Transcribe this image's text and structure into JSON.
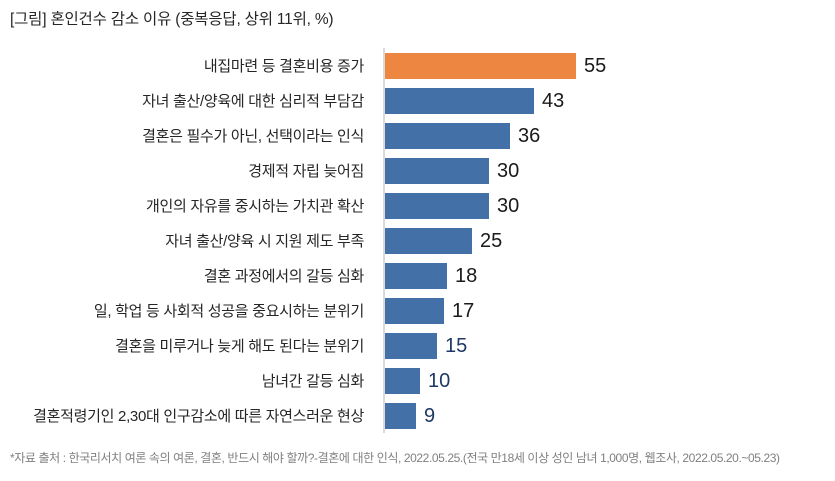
{
  "title": "[그림] 혼인건수 감소 이유 (중복응답, 상위 11위, %)",
  "footer": "*자료 출처 : 한국리서치 여론 속의 여론, 결혼, 반드시 해야 할까?-결혼에 대한 인식, 2022.05.25.(전국 만18세 이상 성인 남녀 1,000명, 웹조사, 2022.05.20.~05.23)",
  "chart_data": {
    "type": "bar",
    "orientation": "horizontal",
    "title": "[그림] 혼인건수 감소 이유 (중복응답, 상위 11위, %)",
    "categories": [
      "내집마련 등 결혼비용 증가",
      "자녀 출산/양육에 대한 심리적 부담감",
      "결혼은 필수가 아닌, 선택이라는 인식",
      "경제적 자립 늦어짐",
      "개인의 자유를 중시하는 가치관 확산",
      "자녀 출산/양육 시 지원 제도 부족",
      "결혼 과정에서의 갈등 심화",
      "일, 학업 등 사회적 성공을 중요시하는 분위기",
      "결혼을 미루거나 늦게 해도 된다는 분위기",
      "남녀간 갈등 심화",
      "결혼적령기인 2,30대 인구감소에 따른 자연스러운 현상"
    ],
    "values": [
      55,
      43,
      36,
      30,
      30,
      25,
      18,
      17,
      15,
      10,
      9
    ],
    "unit": "%",
    "xlim": [
      0,
      60
    ],
    "grid": false,
    "legend": false,
    "data_labels": true,
    "highlight_index": 0,
    "value_label_styles": [
      "black",
      "black",
      "black",
      "black",
      "black",
      "black",
      "black",
      "black",
      "navy",
      "navy",
      "navy"
    ],
    "colors": {
      "highlight_bar": "#ED8640",
      "default_bar": "#4470A8",
      "value_black": "#1A1A1A",
      "value_navy": "#1F3864",
      "axis_line": "#D9D9D9",
      "label_text": "#262626",
      "footer_text": "#808080"
    }
  }
}
